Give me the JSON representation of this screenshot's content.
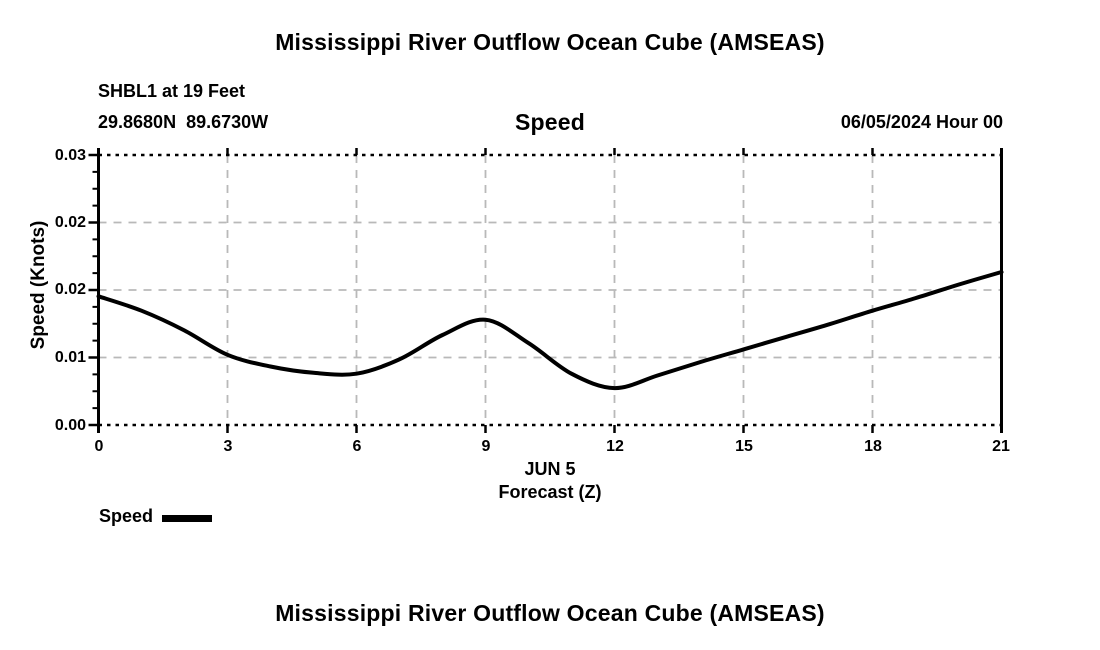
{
  "header": {
    "title": "Mississippi River Outflow Ocean Cube (AMSEAS)",
    "station": "SHBL1 at 19 Feet",
    "coordinates": "29.8680N  89.6730W",
    "panel_title": "Speed",
    "run_label": "06/05/2024 Hour 00"
  },
  "chart_data": {
    "type": "line",
    "title": "Speed",
    "ylabel": "Speed (Knots)",
    "xlabel": "Forecast (Z)",
    "x_date_label": "JUN 5",
    "x": [
      0,
      1,
      2,
      3,
      4,
      5,
      6,
      7,
      8,
      9,
      10,
      11,
      12,
      13,
      14,
      15,
      16,
      17,
      18,
      19,
      20,
      21
    ],
    "series": [
      {
        "name": "Speed",
        "values": [
          0.0143,
          0.0127,
          0.0105,
          0.0078,
          0.0065,
          0.0058,
          0.0057,
          0.0073,
          0.01,
          0.0117,
          0.0091,
          0.0057,
          0.0041,
          0.0055,
          0.007,
          0.0084,
          0.0098,
          0.0112,
          0.0127,
          0.0141,
          0.0156,
          0.017
        ]
      }
    ],
    "xlim": [
      0,
      21
    ],
    "ylim": [
      0,
      0.03
    ],
    "xtick_labels": [
      "0",
      "3",
      "6",
      "9",
      "12",
      "15",
      "18",
      "21"
    ],
    "ytick_labels": [
      "0.00",
      "0.01",
      "0.02",
      "0.02",
      "0.03"
    ],
    "ytick_values": [
      0,
      0.0075,
      0.015,
      0.0225,
      0.03
    ],
    "grid": true,
    "legend_position": "bottom-left",
    "line_color": "#000000",
    "grid_color": "#b9b9b9"
  },
  "footer": {
    "title": "Mississippi River Outflow Ocean Cube (AMSEAS)"
  }
}
